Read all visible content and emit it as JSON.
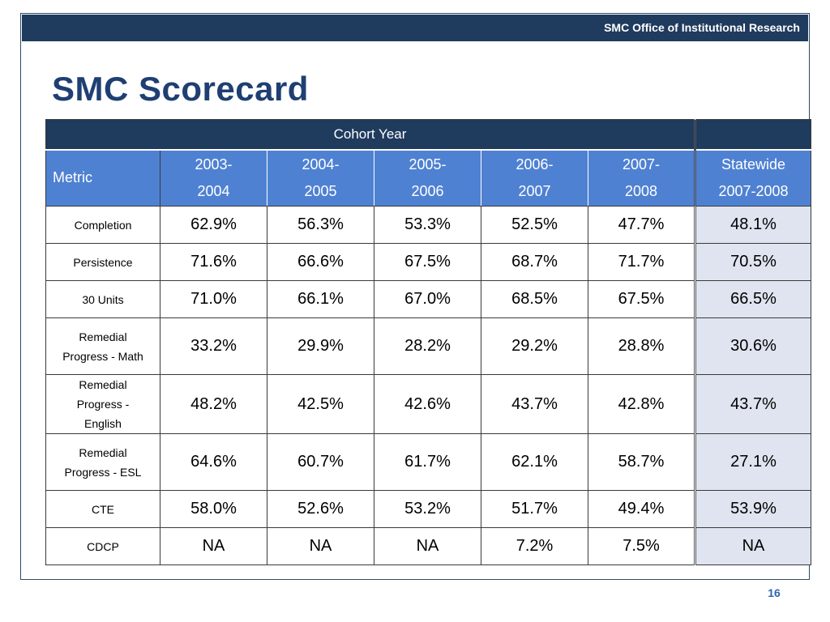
{
  "header": {
    "org": "SMC Office of Institutional Research"
  },
  "title": "SMC Scorecard",
  "page_number": "16",
  "table": {
    "cohort_label": "Cohort Year",
    "metric_label": "Metric",
    "years": [
      [
        "2003-",
        "2004"
      ],
      [
        "2004-",
        "2005"
      ],
      [
        "2005-",
        "2006"
      ],
      [
        "2006-",
        "2007"
      ],
      [
        "2007-",
        "2008"
      ]
    ],
    "statewide": [
      "Statewide",
      "2007-2008"
    ],
    "rows": [
      {
        "metric": [
          "Completion"
        ],
        "values": [
          "62.9%",
          "56.3%",
          "53.3%",
          "52.5%",
          "47.7%"
        ],
        "statewide": "48.1%"
      },
      {
        "metric": [
          "Persistence"
        ],
        "values": [
          "71.6%",
          "66.6%",
          "67.5%",
          "68.7%",
          "71.7%"
        ],
        "statewide": "70.5%"
      },
      {
        "metric": [
          "30 Units"
        ],
        "values": [
          "71.0%",
          "66.1%",
          "67.0%",
          "68.5%",
          "67.5%"
        ],
        "statewide": "66.5%"
      },
      {
        "metric": [
          "Remedial",
          "Progress - Math"
        ],
        "values": [
          "33.2%",
          "29.9%",
          "28.2%",
          "29.2%",
          "28.8%"
        ],
        "statewide": "30.6%"
      },
      {
        "metric": [
          "Remedial",
          "Progress -",
          "English"
        ],
        "values": [
          "48.2%",
          "42.5%",
          "42.6%",
          "43.7%",
          "42.8%"
        ],
        "statewide": "43.7%"
      },
      {
        "metric": [
          "Remedial",
          "Progress - ESL"
        ],
        "values": [
          "64.6%",
          "60.7%",
          "61.7%",
          "62.1%",
          "58.7%"
        ],
        "statewide": "27.1%"
      },
      {
        "metric": [
          "CTE"
        ],
        "values": [
          "58.0%",
          "52.6%",
          "53.2%",
          "51.7%",
          "49.4%"
        ],
        "statewide": "53.9%"
      },
      {
        "metric": [
          "CDCP"
        ],
        "values": [
          "NA",
          "NA",
          "NA",
          "7.2%",
          "7.5%"
        ],
        "statewide": "NA"
      }
    ]
  }
}
